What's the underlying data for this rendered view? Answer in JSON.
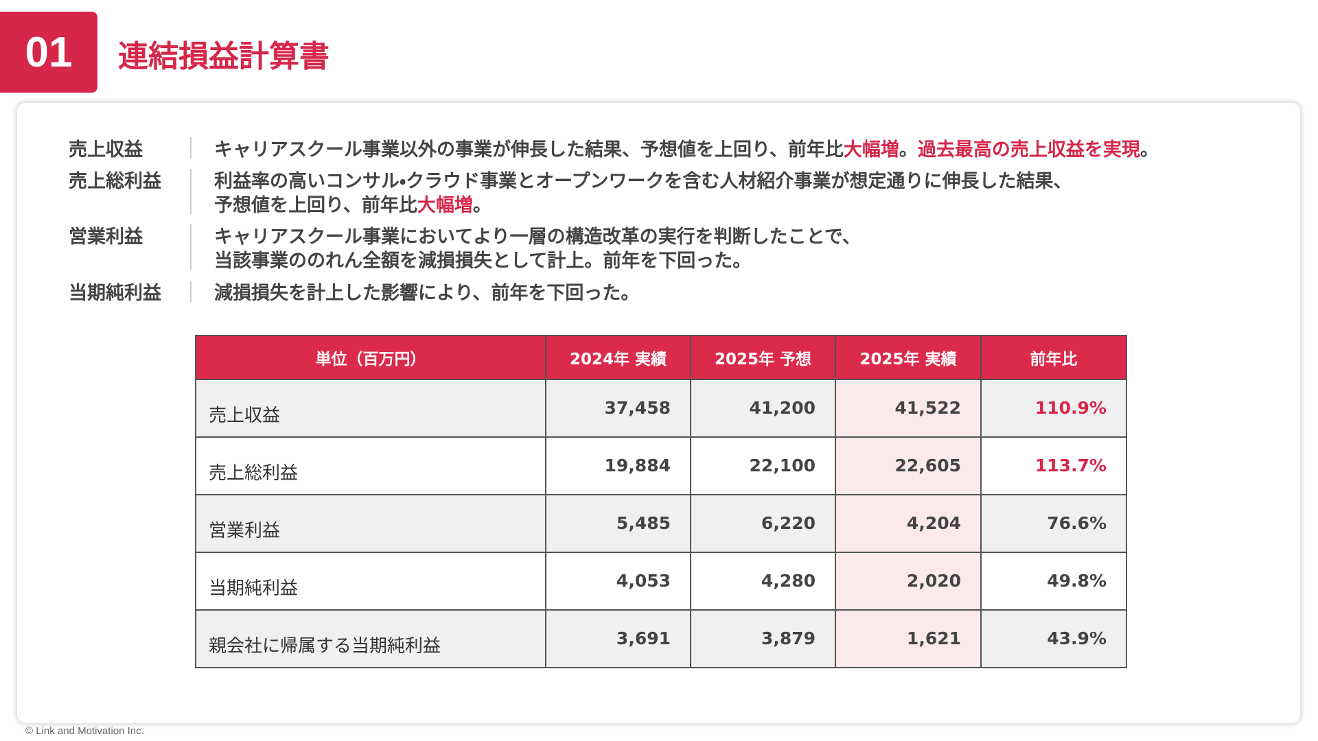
{
  "header": {
    "number": "01",
    "title": "連結損益計算書"
  },
  "summary": [
    {
      "label": "売上収益",
      "lines": [
        [
          {
            "text": "キャリアスクール事業以外の事業が伸長した結果、予想値を上回り、前年比",
            "highlight": false
          },
          {
            "text": "大幅増",
            "highlight": true
          },
          {
            "text": "。",
            "highlight": false
          },
          {
            "text": "過去最高の売上収益を実現",
            "highlight": true
          },
          {
            "text": "。",
            "highlight": false
          }
        ]
      ]
    },
    {
      "label": "売上総利益",
      "lines": [
        [
          {
            "text": "利益率の高いコンサル・クラウド事業とオープンワークを含む人材紹介事業が想定通りに伸長した結果、",
            "highlight": false
          }
        ],
        [
          {
            "text": "予想値を上回り、前年比",
            "highlight": false
          },
          {
            "text": "大幅増",
            "highlight": true
          },
          {
            "text": "。",
            "highlight": false
          }
        ]
      ]
    },
    {
      "label": "営業利益",
      "lines": [
        [
          {
            "text": "キャリアスクール事業においてより一層の構造改革の実行を判断したことで、",
            "highlight": false
          }
        ],
        [
          {
            "text": "当該事業ののれん全額を減損損失として計上。前年を下回った。",
            "highlight": false
          }
        ]
      ]
    },
    {
      "label": "当期純利益",
      "lines": [
        [
          {
            "text": "減損損失を計上した影響により、前年を下回った。",
            "highlight": false
          }
        ]
      ]
    }
  ],
  "table": {
    "columns": [
      "単位（百万円）",
      "2024年 実績",
      "2025年 予想",
      "2025年 実績",
      "前年比"
    ],
    "rows": [
      {
        "label": "売上収益",
        "values": [
          "37,458",
          "41,200",
          "41,522",
          "110.9%"
        ],
        "emphasis": true
      },
      {
        "label": "売上総利益",
        "values": [
          "19,884",
          "22,100",
          "22,605",
          "113.7%"
        ],
        "emphasis": true
      },
      {
        "label": "営業利益",
        "values": [
          "5,485",
          "6,220",
          "4,204",
          "76.6%"
        ],
        "emphasis": false
      },
      {
        "label": "当期純利益",
        "values": [
          "4,053",
          "4,280",
          "2,020",
          "49.8%"
        ],
        "emphasis": false
      },
      {
        "label": "親会社に帰属する当期純利益",
        "values": [
          "3,691",
          "3,879",
          "1,621",
          "43.9%"
        ],
        "emphasis": false
      }
    ]
  },
  "footer": "© Link and Motivation Inc."
}
